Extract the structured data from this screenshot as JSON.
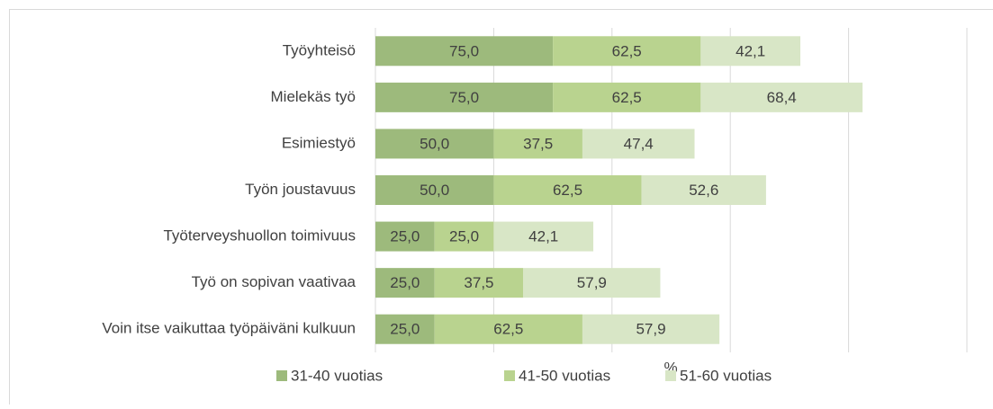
{
  "chart_data": {
    "type": "stacked_barh",
    "categories": [
      "Työyhteisö",
      "Mielekäs työ",
      "Esimiestyö",
      "Työn joustavuus",
      "Työterveyshuollon toimivuus",
      "Työ on sopivan vaativaa ",
      "Voin itse vaikuttaa työpäiväni kulkuun"
    ],
    "series": [
      {
        "name": "31-40 vuotias",
        "color": "#9dba7c",
        "values": [
          75.0,
          75.0,
          50.0,
          50.0,
          25.0,
          25.0,
          25.0
        ],
        "value_labels": [
          "75,0",
          "75,0",
          "50,0",
          "50,0",
          "25,0",
          "25,0",
          "25,0"
        ]
      },
      {
        "name": "41-50 vuotias",
        "color": "#b9d38f",
        "values": [
          62.5,
          62.5,
          37.5,
          62.5,
          25.0,
          37.5,
          62.5
        ],
        "value_labels": [
          "62,5",
          "62,5",
          "37,5",
          "62,5",
          "25,0",
          "37,5",
          "62,5"
        ]
      },
      {
        "name": "51-60 vuotias",
        "color": "#d8e6c6",
        "values": [
          42.1,
          68.4,
          47.4,
          52.6,
          42.1,
          57.9,
          57.9
        ],
        "value_labels": [
          "42,1",
          "68,4",
          "47,4",
          "52,6",
          "42,1",
          "57,9",
          "57,9"
        ]
      }
    ],
    "x_label": "%",
    "xlim": [
      0,
      250
    ],
    "xticks": [
      0,
      50,
      100,
      150,
      200,
      250
    ],
    "grid": true,
    "legend": "bottom"
  }
}
